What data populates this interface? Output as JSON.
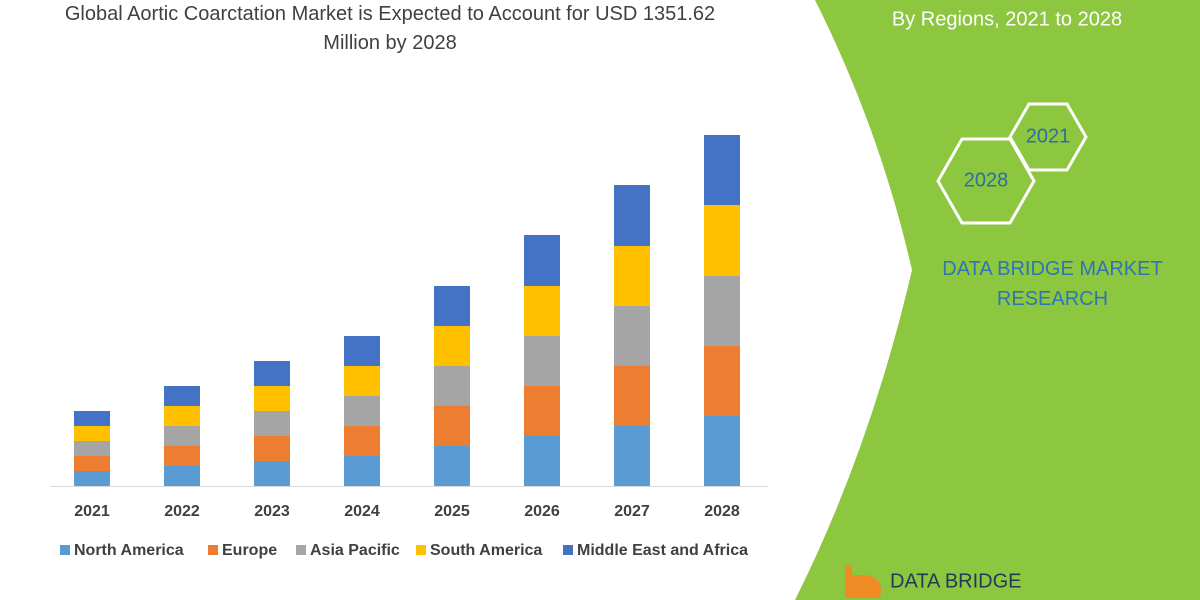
{
  "chart_data": {
    "type": "stacked-bar",
    "title": "Global Aortic Coarctation Market is Expected to Account for USD 1351.62 Million by 2028",
    "categories": [
      "2021",
      "2022",
      "2023",
      "2024",
      "2025",
      "2026",
      "2027",
      "2028"
    ],
    "series": [
      {
        "name": "North America",
        "color": "#5b9bd5",
        "values": [
          15,
          20,
          25,
          30,
          40,
          50,
          60,
          70
        ]
      },
      {
        "name": "Europe",
        "color": "#ed7d31",
        "values": [
          15,
          20,
          25,
          30,
          40,
          50,
          60,
          70
        ]
      },
      {
        "name": "Asia Pacific",
        "color": "#a5a5a5",
        "values": [
          15,
          20,
          25,
          30,
          40,
          50,
          60,
          70
        ]
      },
      {
        "name": "South America",
        "color": "#ffc000",
        "values": [
          15,
          20,
          25,
          30,
          40,
          50,
          60,
          71
        ]
      },
      {
        "name": "Middle East and Africa",
        "color": "#4472c4",
        "values": [
          15,
          20,
          25,
          30,
          40,
          51,
          61,
          70
        ]
      }
    ]
  },
  "side_panel": {
    "subtitle": "By Regions, 2021 to 2028",
    "hexagons": [
      "2021",
      "2028"
    ],
    "brand": "DATA BRIDGE MARKET RESEARCH",
    "logo": "DATA BRIDGE"
  }
}
